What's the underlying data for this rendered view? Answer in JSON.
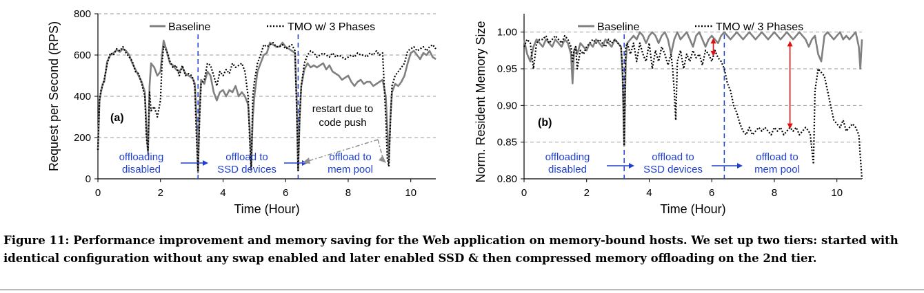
{
  "caption": "Figure 11: Performance improvement and memory saving for the Web application on memory-bound hosts. We set up two tiers: started with identical configuration without any swap enabled and later enabled SSD & then compressed memory offloading on the 2nd tier.",
  "colors": {
    "baseline": "#808080",
    "tmo": "#000000",
    "phase_line": "#1f3fd1",
    "annotation_text": "#1f3fd1",
    "saving_arrow": "#e01010",
    "push_arrow": "#909090"
  },
  "chart_data": [
    {
      "type": "line",
      "panel_label": "(a)",
      "xlabel": "Time (Hour)",
      "ylabel": "Request per Second (RPS)",
      "xlim": [
        0,
        10.8
      ],
      "ylim": [
        0,
        800
      ],
      "xticks": [
        0,
        2,
        4,
        6,
        8,
        10
      ],
      "yticks": [
        0,
        200,
        400,
        600,
        800
      ],
      "grid": "horizontal dashed",
      "legend_position": "top",
      "phase_boundaries": [
        3.2,
        6.4
      ],
      "annotations": {
        "phase1": [
          "offloading",
          "disabled"
        ],
        "phase2": [
          "offload to",
          "SSD devices"
        ],
        "phase3": [
          "offload to",
          "mem pool"
        ],
        "restart": [
          "restart due to",
          "code push"
        ]
      },
      "series": [
        {
          "name": "Baseline",
          "style": "solid",
          "x": [
            0,
            0.05,
            0.1,
            0.15,
            0.2,
            0.3,
            0.4,
            0.5,
            0.6,
            0.7,
            0.8,
            0.9,
            1.0,
            1.1,
            1.2,
            1.3,
            1.4,
            1.5,
            1.55,
            1.6,
            1.65,
            1.7,
            1.8,
            1.9,
            2.0,
            2.05,
            2.1,
            2.2,
            2.3,
            2.4,
            2.5,
            2.6,
            2.7,
            2.8,
            2.9,
            3.0,
            3.05,
            3.1,
            3.15,
            3.2,
            3.25,
            3.3,
            3.4,
            3.5,
            3.6,
            3.7,
            3.8,
            3.9,
            4.0,
            4.1,
            4.2,
            4.3,
            4.4,
            4.5,
            4.6,
            4.7,
            4.8,
            4.85,
            4.9,
            4.95,
            5.0,
            5.1,
            5.2,
            5.3,
            5.4,
            5.5,
            5.6,
            5.7,
            5.8,
            5.9,
            6.0,
            6.1,
            6.2,
            6.3,
            6.35,
            6.4,
            6.45,
            6.5,
            6.6,
            6.7,
            6.8,
            6.9,
            7.0,
            7.1,
            7.2,
            7.3,
            7.4,
            7.5,
            7.6,
            7.7,
            7.8,
            7.9,
            8.0,
            8.1,
            8.2,
            8.3,
            8.4,
            8.5,
            8.6,
            8.7,
            8.8,
            8.9,
            9.0,
            9.1,
            9.2,
            9.25,
            9.3,
            9.35,
            9.4,
            9.5,
            9.6,
            9.7,
            9.8,
            9.9,
            10.0,
            10.1,
            10.2,
            10.3,
            10.4,
            10.5,
            10.6,
            10.7,
            10.8
          ],
          "y": [
            140,
            380,
            420,
            460,
            470,
            570,
            600,
            610,
            625,
            615,
            630,
            620,
            600,
            560,
            530,
            500,
            470,
            420,
            250,
            120,
            450,
            560,
            540,
            500,
            520,
            600,
            670,
            620,
            560,
            550,
            530,
            520,
            540,
            510,
            500,
            490,
            480,
            460,
            300,
            30,
            350,
            480,
            460,
            520,
            500,
            420,
            380,
            420,
            430,
            400,
            430,
            420,
            450,
            400,
            420,
            400,
            360,
            250,
            60,
            300,
            400,
            520,
            560,
            600,
            610,
            660,
            650,
            640,
            640,
            660,
            640,
            630,
            620,
            610,
            400,
            40,
            300,
            450,
            530,
            560,
            540,
            550,
            540,
            550,
            560,
            530,
            550,
            520,
            510,
            500,
            480,
            490,
            500,
            470,
            450,
            470,
            480,
            460,
            470,
            470,
            450,
            460,
            470,
            480,
            400,
            250,
            80,
            300,
            420,
            460,
            450,
            470,
            500,
            560,
            610,
            620,
            600,
            580,
            610,
            600,
            620,
            590,
            580
          ]
        },
        {
          "name": "TMO w/ 3 Phases",
          "style": "dotted",
          "x": [
            0,
            0.05,
            0.1,
            0.15,
            0.2,
            0.3,
            0.4,
            0.5,
            0.6,
            0.7,
            0.8,
            0.9,
            1.0,
            1.1,
            1.2,
            1.3,
            1.4,
            1.5,
            1.55,
            1.6,
            1.65,
            1.7,
            1.8,
            1.9,
            2.0,
            2.05,
            2.1,
            2.2,
            2.3,
            2.4,
            2.5,
            2.6,
            2.7,
            2.8,
            2.9,
            3.0,
            3.05,
            3.1,
            3.15,
            3.2,
            3.25,
            3.3,
            3.4,
            3.5,
            3.6,
            3.7,
            3.8,
            3.9,
            4.0,
            4.1,
            4.2,
            4.3,
            4.4,
            4.5,
            4.6,
            4.7,
            4.8,
            4.85,
            4.9,
            4.95,
            5.0,
            5.1,
            5.2,
            5.3,
            5.4,
            5.5,
            5.6,
            5.7,
            5.8,
            5.9,
            6.0,
            6.1,
            6.2,
            6.3,
            6.35,
            6.4,
            6.45,
            6.5,
            6.6,
            6.7,
            6.8,
            6.9,
            7.0,
            7.1,
            7.2,
            7.3,
            7.4,
            7.5,
            7.6,
            7.7,
            7.8,
            7.9,
            8.0,
            8.1,
            8.2,
            8.3,
            8.4,
            8.5,
            8.6,
            8.7,
            8.8,
            8.9,
            9.0,
            9.1,
            9.2,
            9.25,
            9.3,
            9.35,
            9.4,
            9.5,
            9.6,
            9.7,
            9.8,
            9.9,
            10.0,
            10.1,
            10.2,
            10.3,
            10.4,
            10.5,
            10.6,
            10.7,
            10.8
          ],
          "y": [
            140,
            380,
            430,
            450,
            480,
            560,
            610,
            600,
            630,
            620,
            640,
            610,
            590,
            570,
            520,
            510,
            460,
            400,
            200,
            140,
            420,
            330,
            350,
            300,
            380,
            560,
            640,
            620,
            570,
            540,
            550,
            500,
            550,
            500,
            510,
            500,
            480,
            440,
            200,
            40,
            300,
            460,
            480,
            560,
            550,
            500,
            450,
            520,
            500,
            530,
            510,
            560,
            540,
            550,
            560,
            520,
            400,
            200,
            40,
            400,
            470,
            560,
            600,
            650,
            640,
            650,
            660,
            640,
            640,
            650,
            630,
            640,
            650,
            620,
            350,
            40,
            300,
            450,
            560,
            600,
            620,
            610,
            590,
            600,
            610,
            600,
            590,
            610,
            590,
            600,
            590,
            580,
            590,
            600,
            590,
            610,
            600,
            600,
            590,
            610,
            600,
            620,
            600,
            610,
            300,
            100,
            60,
            280,
            450,
            500,
            520,
            540,
            560,
            620,
            630,
            640,
            620,
            630,
            640,
            620,
            640,
            650,
            630
          ]
        }
      ]
    },
    {
      "type": "line",
      "panel_label": "(b)",
      "xlabel": "Time (Hour)",
      "ylabel": "Norm. Resident Memory Size",
      "xlim": [
        0,
        10.8
      ],
      "ylim": [
        0.8,
        1.025
      ],
      "xticks": [
        0,
        2,
        4,
        6,
        8,
        10
      ],
      "yticks": [
        0.8,
        0.85,
        0.9,
        0.95,
        1.0
      ],
      "ytick_labels": [
        "0.80",
        "0.85",
        "0.90",
        "0.95",
        "1.00"
      ],
      "grid": "horizontal dashed",
      "legend_position": "top",
      "phase_boundaries": [
        3.2,
        6.4
      ],
      "annotations": {
        "phase1": [
          "offloading",
          "disabled"
        ],
        "phase2": [
          "offload to",
          "SSD devices"
        ],
        "phase3": [
          "offload to",
          "mem pool"
        ]
      },
      "saving_arrows": [
        {
          "x": 6.05,
          "y1": 0.967,
          "y2": 0.992
        },
        {
          "x": 8.5,
          "y1": 0.868,
          "y2": 0.988
        }
      ],
      "series": [
        {
          "name": "Baseline",
          "style": "solid",
          "x": [
            0,
            0.1,
            0.2,
            0.3,
            0.4,
            0.5,
            0.6,
            0.7,
            0.8,
            0.9,
            1.0,
            1.1,
            1.2,
            1.3,
            1.4,
            1.5,
            1.55,
            1.6,
            1.65,
            1.7,
            1.8,
            1.9,
            2.0,
            2.1,
            2.2,
            2.3,
            2.4,
            2.5,
            2.6,
            2.7,
            2.8,
            2.9,
            3.0,
            3.1,
            3.15,
            3.2,
            3.25,
            3.3,
            3.4,
            3.5,
            3.6,
            3.7,
            3.8,
            3.9,
            4.0,
            4.1,
            4.2,
            4.3,
            4.4,
            4.5,
            4.6,
            4.7,
            4.8,
            4.9,
            5.0,
            5.1,
            5.2,
            5.3,
            5.4,
            5.5,
            5.6,
            5.7,
            5.8,
            5.9,
            6.0,
            6.1,
            6.2,
            6.3,
            6.4,
            6.5,
            6.6,
            6.7,
            6.8,
            6.9,
            7.0,
            7.1,
            7.2,
            7.3,
            7.4,
            7.5,
            7.6,
            7.7,
            7.8,
            7.9,
            8.0,
            8.1,
            8.2,
            8.3,
            8.4,
            8.5,
            8.6,
            8.7,
            8.8,
            8.9,
            9.0,
            9.1,
            9.2,
            9.3,
            9.4,
            9.5,
            9.6,
            9.7,
            9.8,
            9.9,
            10.0,
            10.1,
            10.2,
            10.3,
            10.4,
            10.5,
            10.6,
            10.7,
            10.75,
            10.8
          ],
          "y": [
            0.99,
            0.97,
            0.96,
            0.98,
            0.99,
            0.985,
            0.98,
            0.99,
            0.985,
            0.98,
            0.99,
            0.985,
            0.98,
            0.99,
            0.985,
            0.97,
            0.93,
            0.975,
            0.98,
            0.97,
            0.985,
            0.98,
            0.975,
            0.985,
            0.98,
            0.99,
            0.985,
            0.98,
            0.99,
            0.985,
            0.98,
            0.99,
            0.985,
            0.98,
            0.94,
            0.845,
            0.96,
            0.985,
            0.99,
            0.995,
            0.99,
            1.0,
            0.995,
            0.985,
            0.995,
            1.0,
            0.995,
            0.985,
            0.995,
            1.0,
            0.99,
            0.97,
            0.99,
            1.0,
            0.99,
            0.995,
            1.0,
            0.99,
            0.98,
            0.995,
            1.0,
            0.99,
            0.98,
            0.99,
            0.995,
            0.99,
            0.985,
            0.995,
            1.0,
            0.995,
            0.99,
            0.995,
            1.0,
            0.995,
            0.99,
            0.995,
            1.0,
            0.995,
            0.99,
            0.995,
            1.0,
            0.995,
            0.99,
            0.995,
            1.0,
            0.995,
            0.99,
            0.995,
            1.0,
            0.995,
            0.99,
            0.995,
            1.0,
            0.995,
            0.99,
            0.98,
            0.99,
            0.995,
            0.97,
            0.96,
            0.995,
            1.0,
            0.995,
            0.99,
            0.995,
            1.0,
            0.99,
            0.995,
            0.99,
            0.995,
            1.0,
            0.98,
            0.95,
            0.99
          ]
        },
        {
          "name": "TMO w/ 3 Phases",
          "style": "dotted",
          "x": [
            0,
            0.1,
            0.2,
            0.3,
            0.4,
            0.5,
            0.6,
            0.7,
            0.8,
            0.9,
            1.0,
            1.1,
            1.2,
            1.3,
            1.4,
            1.5,
            1.55,
            1.6,
            1.65,
            1.7,
            1.8,
            1.9,
            2.0,
            2.1,
            2.2,
            2.3,
            2.4,
            2.5,
            2.6,
            2.7,
            2.8,
            2.9,
            3.0,
            3.1,
            3.15,
            3.2,
            3.25,
            3.3,
            3.4,
            3.5,
            3.6,
            3.7,
            3.8,
            3.9,
            4.0,
            4.1,
            4.2,
            4.3,
            4.4,
            4.5,
            4.6,
            4.7,
            4.75,
            4.8,
            4.85,
            4.9,
            5.0,
            5.1,
            5.2,
            5.3,
            5.4,
            5.5,
            5.6,
            5.7,
            5.8,
            5.9,
            6.0,
            6.1,
            6.2,
            6.3,
            6.4,
            6.5,
            6.6,
            6.7,
            6.8,
            6.9,
            7.0,
            7.1,
            7.2,
            7.3,
            7.4,
            7.5,
            7.6,
            7.7,
            7.8,
            7.9,
            8.0,
            8.1,
            8.2,
            8.3,
            8.4,
            8.5,
            8.6,
            8.7,
            8.8,
            8.9,
            9.0,
            9.1,
            9.15,
            9.2,
            9.25,
            9.3,
            9.4,
            9.5,
            9.6,
            9.7,
            9.8,
            9.9,
            10.0,
            10.1,
            10.2,
            10.3,
            10.4,
            10.5,
            10.6,
            10.7,
            10.75,
            10.8
          ],
          "y": [
            0.98,
            0.99,
            0.985,
            0.95,
            0.985,
            0.99,
            0.99,
            0.995,
            0.985,
            0.99,
            0.995,
            0.99,
            0.985,
            0.995,
            0.99,
            0.98,
            0.96,
            0.975,
            0.98,
            0.95,
            0.975,
            0.97,
            0.98,
            0.985,
            0.99,
            0.985,
            0.99,
            0.985,
            0.98,
            0.99,
            0.985,
            0.99,
            0.985,
            0.98,
            0.95,
            0.845,
            0.98,
            0.985,
            0.97,
            0.985,
            0.96,
            0.985,
            0.97,
            0.96,
            0.985,
            0.95,
            0.975,
            0.96,
            0.98,
            0.97,
            0.955,
            0.97,
            0.95,
            0.92,
            0.88,
            0.96,
            0.975,
            0.95,
            0.97,
            0.96,
            0.975,
            0.965,
            0.97,
            0.955,
            0.975,
            0.97,
            0.96,
            0.975,
            0.965,
            0.96,
            0.95,
            0.93,
            0.92,
            0.9,
            0.89,
            0.875,
            0.865,
            0.86,
            0.87,
            0.86,
            0.865,
            0.87,
            0.865,
            0.87,
            0.865,
            0.86,
            0.87,
            0.865,
            0.87,
            0.86,
            0.865,
            0.87,
            0.865,
            0.87,
            0.86,
            0.865,
            0.87,
            0.865,
            0.86,
            0.84,
            0.82,
            0.92,
            0.95,
            0.945,
            0.94,
            0.92,
            0.9,
            0.88,
            0.875,
            0.87,
            0.88,
            0.865,
            0.87,
            0.875,
            0.87,
            0.86,
            0.83,
            0.8
          ]
        }
      ]
    }
  ]
}
